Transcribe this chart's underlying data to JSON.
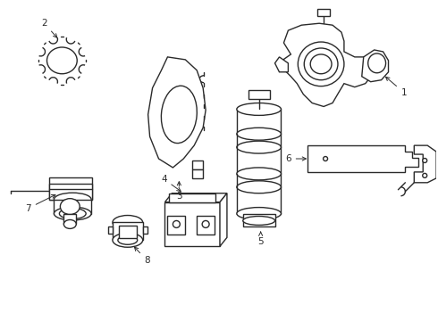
{
  "bg_color": "#ffffff",
  "line_color": "#2a2a2a",
  "lw": 1.0,
  "fig_width": 4.9,
  "fig_height": 3.6,
  "dpi": 100
}
